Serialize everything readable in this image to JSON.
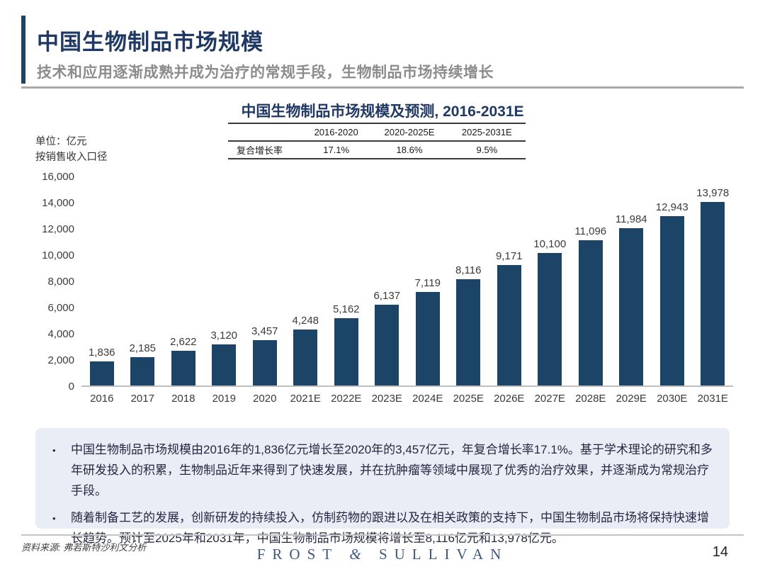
{
  "header": {
    "title": "中国生物制品市场规模",
    "subtitle": "技术和应用逐渐成熟并成为治疗的常规手段，生物制品市场持续增长"
  },
  "chart_data": {
    "type": "bar",
    "title": "中国生物制品市场规模及预测, 2016-2031E",
    "unit_label": [
      "单位：亿元",
      "按销售收入口径"
    ],
    "categories": [
      "2016",
      "2017",
      "2018",
      "2019",
      "2020",
      "2021E",
      "2022E",
      "2023E",
      "2024E",
      "2025E",
      "2026E",
      "2027E",
      "2028E",
      "2029E",
      "2030E",
      "2031E"
    ],
    "values": [
      1836,
      2185,
      2622,
      3120,
      3457,
      4248,
      5162,
      6137,
      7119,
      8116,
      9171,
      10100,
      11096,
      11984,
      12943,
      13978
    ],
    "ylabel": "亿元",
    "ylim": [
      0,
      16000
    ],
    "ytick_step": 2000,
    "grid": false,
    "legend": "none",
    "bar_color": "#1C4467",
    "cagr": {
      "row_label": "复合增长率",
      "columns": [
        "2016-2020",
        "2020-2025E",
        "2025-2031E"
      ],
      "values": [
        "17.1%",
        "18.6%",
        "9.5%"
      ]
    }
  },
  "insights": [
    "中国生物制品市场规模由2016年的1,836亿元增长至2020年的3,457亿元，年复合增长率17.1%。基于学术理论的研究和多年研发投入的积累，生物制品近年来得到了快速发展，并在抗肿瘤等领域中展现了优秀的治疗效果，并逐渐成为常规治疗手段。",
    "随着制备工艺的发展，创新研发的持续投入，仿制药物的跟进以及在相关政策的支持下，中国生物制品市场将保持快速增长趋势。预计至2025年和2031年，中国生物制品市场规模将增长至8,116亿元和13,978亿元。"
  ],
  "footer": {
    "source": "资料来源: 弗若斯特沙利文分析",
    "logo_left": "FROST",
    "logo_amp": "&",
    "logo_right": "SULLIVAN",
    "page": "14"
  },
  "colors": {
    "accent_navy": "#1C4467",
    "title_navy": "#1F3864",
    "subtitle_gray": "#8C8C8C",
    "box_background": "#E9EDF6",
    "logo_navy": "#3B5780"
  }
}
